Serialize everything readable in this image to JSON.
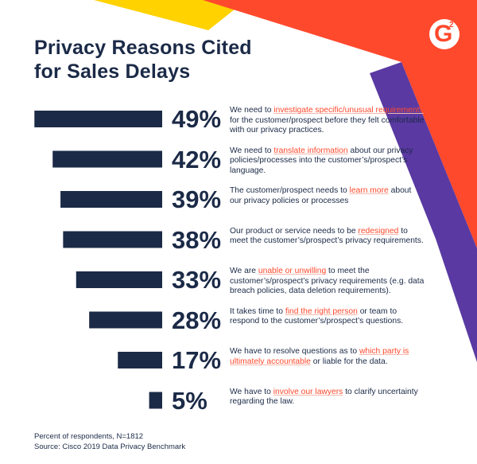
{
  "title_lines": [
    "Privacy Reasons Cited",
    "for Sales Delays"
  ],
  "logo_text": "G2",
  "colors": {
    "navy": "#1b2a47",
    "orange": "#ff492c",
    "purple": "#5a39a2",
    "yellow": "#ffd200"
  },
  "chart_data": {
    "type": "bar",
    "orientation": "horizontal",
    "title": "Privacy Reasons Cited for Sales Delays",
    "unit": "%",
    "xlim": [
      0,
      100
    ],
    "categories": [
      "We need to investigate specific/unusual requirements for the customer/prospect before they felt comfortable with our privacy practices.",
      "We need to translate information about our privacy policies/processes into the customer’s/prospect’s language.",
      "The customer/prospect needs to learn more about our privacy policies or processes",
      "Our product or service needs to be redesigned to meet the customer’s/prospect’s privacy requirements.",
      "We are unable or unwilling to meet the customer’s/prospect’s privacy requirements (e.g. data breach policies, data deletion requirements).",
      "It takes time to find the right person or team to respond to the customer’s/prospect’s questions.",
      "We have to resolve questions as to which party is ultimately accountable or liable for the data.",
      "We have to involve our lawyers to clarify uncertainty regarding the law."
    ],
    "values": [
      49,
      42,
      39,
      38,
      33,
      28,
      17,
      5
    ],
    "labels": [
      "49%",
      "42%",
      "39%",
      "38%",
      "33%",
      "28%",
      "17%",
      "5%"
    ]
  },
  "rows": [
    {
      "pct": "49%",
      "parts": [
        {
          "t": "We need to "
        },
        {
          "t": "investigate specific/unusual requirements",
          "h": true
        },
        {
          "t": " for the customer/prospect before they felt comfortable with our privacy practices."
        }
      ]
    },
    {
      "pct": "42%",
      "parts": [
        {
          "t": "We need to "
        },
        {
          "t": "translate information",
          "h": true
        },
        {
          "t": " about our privacy policies/processes into the customer’s/prospect’s language."
        }
      ]
    },
    {
      "pct": "39%",
      "parts": [
        {
          "t": "The customer/prospect needs to "
        },
        {
          "t": "learn more",
          "h": true
        },
        {
          "t": " about our privacy policies or processes"
        }
      ]
    },
    {
      "pct": "38%",
      "parts": [
        {
          "t": "Our product or service needs to be "
        },
        {
          "t": "redesigned",
          "h": true
        },
        {
          "t": " to meet the customer’s/prospect’s privacy requirements."
        }
      ]
    },
    {
      "pct": "33%",
      "parts": [
        {
          "t": "We are "
        },
        {
          "t": "unable or unwilling",
          "h": true
        },
        {
          "t": " to meet the customer’s/prospect’s privacy requirements (e.g. data breach policies, data deletion requirements)."
        }
      ]
    },
    {
      "pct": "28%",
      "parts": [
        {
          "t": "It takes time to "
        },
        {
          "t": "find the right person",
          "h": true
        },
        {
          "t": " or team to respond to the customer’s/prospect’s questions."
        }
      ]
    },
    {
      "pct": "17%",
      "parts": [
        {
          "t": "We have to resolve questions as to "
        },
        {
          "t": "which party is ultimately accountable",
          "h": true
        },
        {
          "t": " or liable for the data."
        }
      ]
    },
    {
      "pct": "5%",
      "parts": [
        {
          "t": "We have to "
        },
        {
          "t": "involve our lawyers",
          "h": true
        },
        {
          "t": " to clarify uncertainty regarding the law."
        }
      ]
    }
  ],
  "footer": {
    "respondents": "Percent of respondents, N=1812",
    "source": "Source:  Cisco 2019 Data Privacy Benchmark"
  }
}
